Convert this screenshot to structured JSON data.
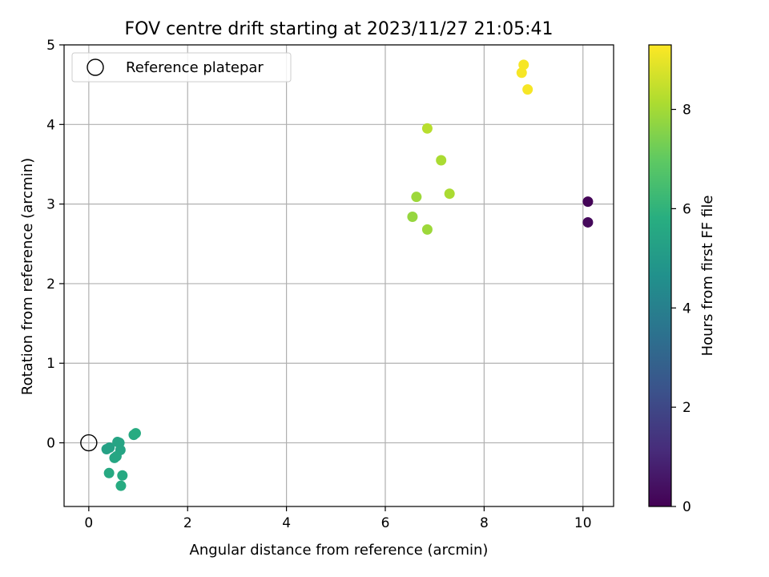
{
  "chart_data": {
    "type": "scatter",
    "title": "FOV centre drift starting at 2023/11/27 21:05:41",
    "xlabel": "Angular distance from reference (arcmin)",
    "ylabel": "Rotation from reference (arcmin)",
    "xlim": [
      -0.5,
      10.62
    ],
    "ylim": [
      -0.8,
      5.0
    ],
    "xticks": [
      0,
      2,
      4,
      6,
      8,
      10
    ],
    "yticks": [
      0,
      1,
      2,
      3,
      4,
      5
    ],
    "grid": true,
    "legend": {
      "position": "top-left",
      "entries": [
        "Reference platepar"
      ]
    },
    "reference_point": {
      "x": 0,
      "y": 0,
      "label": "Reference platepar"
    },
    "colorbar": {
      "label": "Hours from first FF file",
      "min": 0,
      "max": 9.3,
      "ticks": [
        0,
        2,
        4,
        6,
        8
      ],
      "colormap": "viridis"
    },
    "points": [
      {
        "x": 10.1,
        "y": 3.03,
        "c": 0.1
      },
      {
        "x": 10.1,
        "y": 2.77,
        "c": 0.2
      },
      {
        "x": 0.36,
        "y": -0.08,
        "c": 5.3
      },
      {
        "x": 0.42,
        "y": -0.06,
        "c": 5.3
      },
      {
        "x": 0.58,
        "y": 0.01,
        "c": 5.4
      },
      {
        "x": 0.62,
        "y": 0.0,
        "c": 5.4
      },
      {
        "x": 0.64,
        "y": -0.09,
        "c": 5.4
      },
      {
        "x": 0.52,
        "y": -0.19,
        "c": 5.5
      },
      {
        "x": 0.56,
        "y": -0.17,
        "c": 5.5
      },
      {
        "x": 0.41,
        "y": -0.38,
        "c": 5.6
      },
      {
        "x": 0.68,
        "y": -0.41,
        "c": 5.6
      },
      {
        "x": 0.65,
        "y": -0.54,
        "c": 5.7
      },
      {
        "x": 0.91,
        "y": 0.1,
        "c": 5.6
      },
      {
        "x": 0.95,
        "y": 0.12,
        "c": 5.7
      },
      {
        "x": 6.55,
        "y": 2.84,
        "c": 7.8
      },
      {
        "x": 6.63,
        "y": 3.09,
        "c": 7.9
      },
      {
        "x": 6.85,
        "y": 2.68,
        "c": 7.9
      },
      {
        "x": 7.3,
        "y": 3.13,
        "c": 8.1
      },
      {
        "x": 7.13,
        "y": 3.55,
        "c": 8.1
      },
      {
        "x": 6.85,
        "y": 3.95,
        "c": 8.3
      },
      {
        "x": 8.8,
        "y": 4.75,
        "c": 9.2
      },
      {
        "x": 8.76,
        "y": 4.65,
        "c": 9.2
      },
      {
        "x": 8.88,
        "y": 4.44,
        "c": 9.2
      }
    ]
  }
}
